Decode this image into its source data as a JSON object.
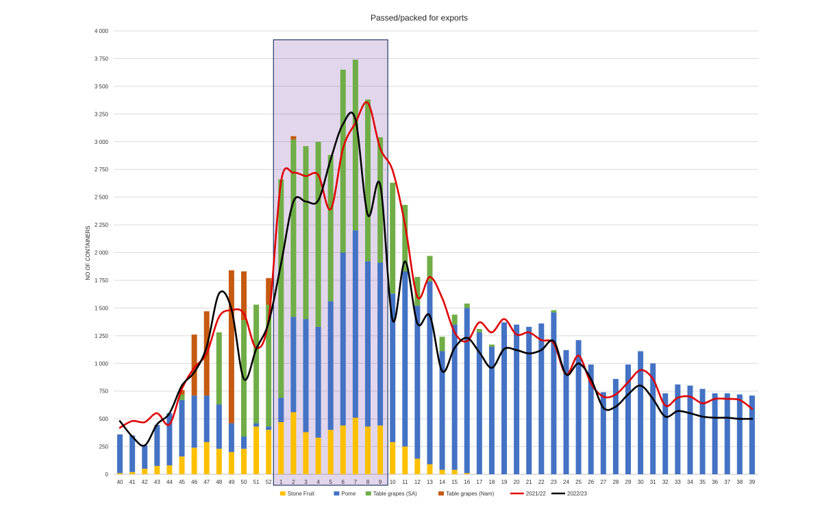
{
  "chart_data": {
    "type": "bar",
    "stacked": true,
    "title": "Passed/packed  for exports",
    "ylabel": "NO OF CONTAINERS",
    "xlabel": "",
    "ylim": [
      0,
      4000
    ],
    "yticks": [
      0,
      250,
      500,
      750,
      1000,
      1250,
      1500,
      1750,
      2000,
      2250,
      2500,
      2750,
      3000,
      3250,
      3500,
      3750,
      4000
    ],
    "ytick_labels": [
      "0",
      "250",
      "500",
      "750",
      "1 000",
      "1 250",
      "1 500",
      "1 750",
      "2 000",
      "2 250",
      "2 500",
      "2 750",
      "3 000",
      "3 250",
      "3 500",
      "3 750",
      "4 000"
    ],
    "grid": true,
    "legend_position": "bottom",
    "highlight_range": [
      "1",
      "9"
    ],
    "categories": [
      "40",
      "41",
      "42",
      "43",
      "44",
      "45",
      "46",
      "47",
      "48",
      "49",
      "50",
      "51",
      "52",
      "1",
      "2",
      "3",
      "4",
      "5",
      "6",
      "7",
      "8",
      "9",
      "10",
      "11",
      "12",
      "13",
      "14",
      "15",
      "16",
      "17",
      "18",
      "19",
      "20",
      "21",
      "22",
      "23",
      "24",
      "25",
      "26",
      "27",
      "28",
      "29",
      "30",
      "31",
      "32",
      "33",
      "34",
      "35",
      "36",
      "37",
      "38",
      "39"
    ],
    "series": [
      {
        "name": "Stone Fruit",
        "kind": "bar",
        "color": "#FFC000",
        "values": [
          10,
          20,
          50,
          75,
          80,
          160,
          240,
          290,
          230,
          200,
          230,
          430,
          400,
          470,
          560,
          380,
          330,
          400,
          440,
          510,
          430,
          440,
          290,
          250,
          140,
          90,
          40,
          40,
          10,
          0,
          0,
          0,
          0,
          0,
          0,
          0,
          0,
          0,
          0,
          0,
          0,
          0,
          0,
          0,
          0,
          0,
          0,
          0,
          0,
          0,
          0,
          0
        ]
      },
      {
        "name": "Pome",
        "kind": "bar",
        "color": "#4472C4",
        "values": [
          350,
          330,
          210,
          370,
          470,
          510,
          470,
          420,
          400,
          260,
          110,
          30,
          30,
          220,
          860,
          1020,
          1000,
          1160,
          1560,
          1690,
          1490,
          1470,
          1340,
          1580,
          1380,
          1650,
          1070,
          1310,
          1490,
          1280,
          1150,
          1370,
          1350,
          1330,
          1360,
          1460,
          1120,
          1210,
          990,
          740,
          860,
          990,
          1110,
          1000,
          730,
          810,
          800,
          770,
          730,
          730,
          720,
          710
        ]
      },
      {
        "name": "Table grapes (SA)",
        "kind": "bar",
        "color": "#70AD47",
        "values": [
          0,
          0,
          0,
          0,
          0,
          50,
          0,
          0,
          650,
          0,
          1050,
          1070,
          1100,
          1970,
          1600,
          1560,
          1670,
          1320,
          1650,
          1540,
          1460,
          1130,
          1000,
          600,
          260,
          230,
          130,
          90,
          40,
          30,
          20,
          0,
          0,
          0,
          0,
          20,
          0,
          0,
          0,
          0,
          0,
          0,
          0,
          0,
          0,
          0,
          0,
          0,
          0,
          0,
          0,
          0
        ]
      },
      {
        "name": "Table grapes (Nam)",
        "kind": "bar",
        "color": "#C55A11",
        "values": [
          0,
          0,
          0,
          0,
          0,
          40,
          550,
          760,
          0,
          1380,
          440,
          0,
          240,
          0,
          30,
          0,
          0,
          0,
          0,
          0,
          0,
          0,
          0,
          0,
          0,
          0,
          0,
          0,
          0,
          0,
          0,
          0,
          0,
          0,
          0,
          0,
          0,
          0,
          0,
          0,
          0,
          0,
          0,
          0,
          0,
          0,
          0,
          0,
          0,
          0,
          0,
          0
        ]
      },
      {
        "name": "2021/22",
        "kind": "line",
        "color": "#E00000",
        "values": [
          420,
          480,
          470,
          550,
          450,
          770,
          960,
          1090,
          1420,
          1480,
          1450,
          1140,
          1400,
          2640,
          2720,
          2690,
          2700,
          2390,
          2940,
          3170,
          3350,
          2940,
          2740,
          2250,
          1600,
          1780,
          1590,
          1280,
          1200,
          1370,
          1280,
          1400,
          1260,
          1280,
          1210,
          1180,
          900,
          1070,
          820,
          700,
          720,
          830,
          940,
          860,
          620,
          690,
          700,
          640,
          680,
          680,
          670,
          590
        ]
      },
      {
        "name": "2022/23",
        "kind": "line",
        "color": "#000000",
        "values": [
          480,
          340,
          260,
          450,
          550,
          800,
          920,
          1150,
          1630,
          1490,
          860,
          1130,
          1370,
          1900,
          2460,
          2460,
          2470,
          2840,
          3160,
          3200,
          2340,
          2610,
          1390,
          1920,
          1360,
          1430,
          930,
          1140,
          1230,
          1100,
          960,
          1130,
          1120,
          1090,
          1120,
          1200,
          900,
          1000,
          860,
          600,
          610,
          720,
          800,
          680,
          520,
          570,
          550,
          520,
          510,
          510,
          500,
          500
        ]
      }
    ]
  }
}
